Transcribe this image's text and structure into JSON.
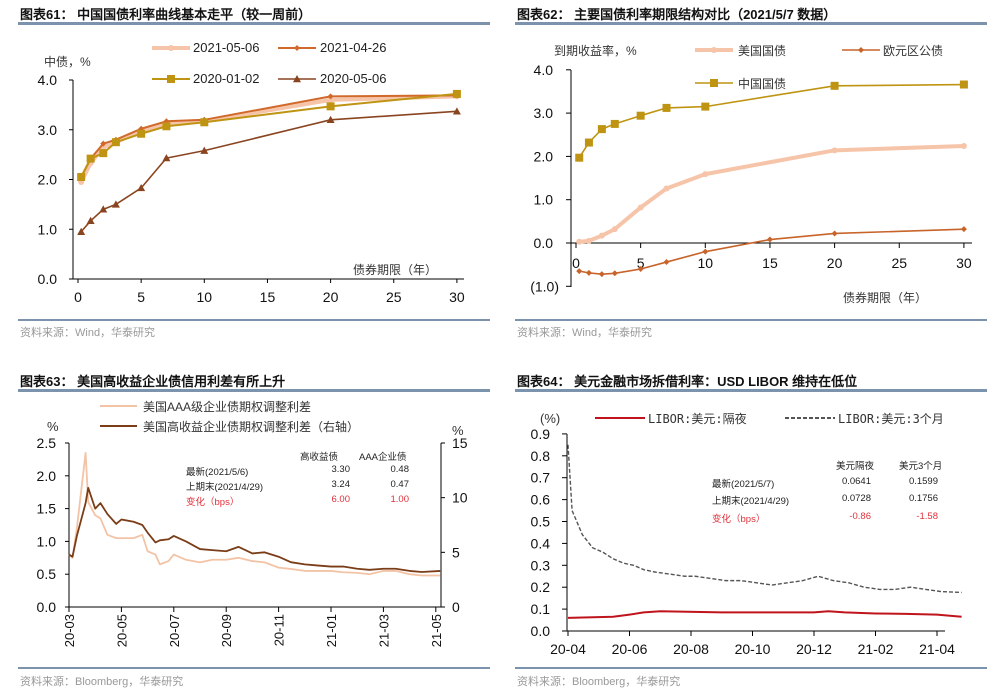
{
  "panels": [
    {
      "title": "图表61：  中国国债利率曲线基本走平（较一周前）",
      "source": "资料来源：Wind，华泰研究"
    },
    {
      "title": "图表62：  主要国债利率期限结构对比（2021/5/7 数据）",
      "source": "资料来源：Wind，华泰研究"
    },
    {
      "title": "图表63：  美国高收益企业债信用利差有所上升",
      "source": "资料来源：Bloomberg，华泰研究"
    },
    {
      "title": "图表64：  美元金融市场拆借利率：USD LIBOR 维持在低位",
      "source": "资料来源：Bloomberg，华泰研究"
    }
  ],
  "table63": {
    "headers": [
      "高收益债",
      "AAA企业债"
    ],
    "rows": [
      {
        "label": "最新(2021/5/6)",
        "v1": "3.30",
        "v2": "0.48"
      },
      {
        "label": "上期末(2021/4/29)",
        "v1": "3.24",
        "v2": "0.47"
      },
      {
        "label": "变化（bps）",
        "v1": "6.00",
        "v2": "1.00"
      }
    ]
  },
  "table64": {
    "headers": [
      "美元隔夜",
      "美元3个月"
    ],
    "rows": [
      {
        "label": "最新(2021/5/7)",
        "v1": "0.0641",
        "v2": "0.1599"
      },
      {
        "label": "上期末(2021/4/29)",
        "v1": "0.0728",
        "v2": "0.1756"
      },
      {
        "label": "变化（bps）",
        "v1": "-0.86",
        "v2": "-1.58"
      }
    ]
  },
  "chart_data": [
    {
      "type": "line",
      "title": "中国国债利率曲线基本走平（较一周前）",
      "xlabel": "债券期限（年）",
      "ylabel": "中债，%",
      "xlim": [
        0,
        30
      ],
      "ylim": [
        0,
        4
      ],
      "xticks": [
        "0",
        "5",
        "10",
        "15",
        "20",
        "25",
        "30"
      ],
      "yticks": [
        "0.0",
        "1.0",
        "2.0",
        "3.0",
        "4.0"
      ],
      "legend": "top",
      "x": [
        0.25,
        1,
        2,
        3,
        5,
        7,
        10,
        20,
        30
      ],
      "series": [
        {
          "name": "2021-05-06",
          "color": "#f6c4a8",
          "values": [
            1.95,
            2.33,
            2.65,
            2.75,
            2.97,
            3.12,
            3.17,
            3.6,
            3.67
          ]
        },
        {
          "name": "2021-04-26",
          "color": "#d0692a",
          "values": [
            2.05,
            2.42,
            2.72,
            2.8,
            3.02,
            3.17,
            3.2,
            3.67,
            3.69
          ]
        },
        {
          "name": "2020-01-02",
          "color": "#bf9412",
          "values": [
            2.05,
            2.42,
            2.53,
            2.75,
            2.92,
            3.07,
            3.15,
            3.47,
            3.72
          ]
        },
        {
          "name": "2020-05-06",
          "color": "#8a4520",
          "values": [
            0.95,
            1.17,
            1.4,
            1.5,
            1.83,
            2.43,
            2.58,
            3.2,
            3.37
          ]
        }
      ]
    },
    {
      "type": "line",
      "title": "主要国债利率期限结构对比（2021/5/7 数据）",
      "xlabel": "债券期限（年）",
      "ylabel": "到期收益率，%",
      "xlim": [
        0,
        30
      ],
      "ylim": [
        -1,
        4
      ],
      "xticks": [
        "0",
        "5",
        "10",
        "15",
        "20",
        "25",
        "30"
      ],
      "yticks": [
        "(1.0)",
        "0.0",
        "1.0",
        "2.0",
        "3.0",
        "4.0"
      ],
      "legend": "top",
      "series": [
        {
          "name": "美国国债",
          "color": "#f6c4a8",
          "x": [
            0.25,
            1,
            2,
            3,
            5,
            7,
            10,
            20,
            30
          ],
          "values": [
            0.03,
            0.05,
            0.17,
            0.32,
            0.82,
            1.26,
            1.59,
            2.14,
            2.24
          ]
        },
        {
          "name": "欧元区公债",
          "color": "#c8642a",
          "x": [
            0.25,
            1,
            2,
            3,
            5,
            7,
            10,
            15,
            20,
            30
          ],
          "values": [
            -0.65,
            -0.69,
            -0.72,
            -0.7,
            -0.6,
            -0.44,
            -0.2,
            0.08,
            0.22,
            0.32
          ]
        },
        {
          "name": "中国国债",
          "color": "#bf9412",
          "x": [
            0.25,
            1,
            2,
            3,
            5,
            7,
            10,
            20,
            30
          ],
          "values": [
            1.97,
            2.32,
            2.63,
            2.75,
            2.94,
            3.12,
            3.15,
            3.63,
            3.66
          ]
        }
      ]
    },
    {
      "type": "line",
      "title": "美国高收益企业债信用利差有所上升",
      "ylabel_left": "%",
      "ylabel_right": "%",
      "ylim": [
        0,
        2.5
      ],
      "ylim_right": [
        0,
        15
      ],
      "xticks": [
        "20-03",
        "20-05",
        "20-07",
        "20-09",
        "20-11",
        "21-01",
        "21-03",
        "21-05"
      ],
      "yticks": [
        "0.0",
        "0.5",
        "1.0",
        "1.5",
        "2.0",
        "2.5"
      ],
      "yticks_right": [
        "0",
        "5",
        "10",
        "15"
      ],
      "legend": "top-left",
      "series": [
        {
          "name": "美国AAA级企业债期权调整利差",
          "axis": "left",
          "color": "#f3c3a6",
          "x": [
            "2020-03-01",
            "2020-03-05",
            "2020-03-10",
            "2020-03-20",
            "2020-03-23",
            "2020-03-31",
            "2020-04-07",
            "2020-04-15",
            "2020-04-25",
            "2020-05-01",
            "2020-05-15",
            "2020-05-25",
            "2020-06-01",
            "2020-06-10",
            "2020-06-15",
            "2020-06-25",
            "2020-07-01",
            "2020-07-15",
            "2020-08-01",
            "2020-08-15",
            "2020-09-01",
            "2020-09-15",
            "2020-10-01",
            "2020-10-15",
            "2020-11-01",
            "2020-11-15",
            "2020-12-01",
            "2020-12-15",
            "2021-01-01",
            "2021-01-15",
            "2021-02-01",
            "2021-02-15",
            "2021-03-01",
            "2021-03-15",
            "2021-04-01",
            "2021-04-15",
            "2021-05-06"
          ],
          "values": [
            0.8,
            0.75,
            1.2,
            2.35,
            1.6,
            1.4,
            1.35,
            1.1,
            1.05,
            1.05,
            1.05,
            1.1,
            0.85,
            0.8,
            0.65,
            0.7,
            0.8,
            0.72,
            0.68,
            0.72,
            0.72,
            0.75,
            0.7,
            0.68,
            0.6,
            0.58,
            0.55,
            0.55,
            0.55,
            0.53,
            0.52,
            0.5,
            0.55,
            0.55,
            0.5,
            0.48,
            0.48
          ]
        },
        {
          "name": "美国高收益企业债期权调整利差（右轴）",
          "axis": "right",
          "color": "#7a3d17",
          "x": [
            "2020-03-01",
            "2020-03-05",
            "2020-03-10",
            "2020-03-20",
            "2020-03-23",
            "2020-03-31",
            "2020-04-07",
            "2020-04-15",
            "2020-04-25",
            "2020-05-01",
            "2020-05-15",
            "2020-05-25",
            "2020-06-01",
            "2020-06-10",
            "2020-06-15",
            "2020-06-25",
            "2020-07-01",
            "2020-07-15",
            "2020-08-01",
            "2020-08-15",
            "2020-09-01",
            "2020-09-15",
            "2020-10-01",
            "2020-10-15",
            "2020-11-01",
            "2020-11-15",
            "2020-12-01",
            "2020-12-15",
            "2021-01-01",
            "2021-01-15",
            "2021-02-01",
            "2021-02-15",
            "2021-03-01",
            "2021-03-15",
            "2021-04-01",
            "2021-04-15",
            "2021-05-06"
          ],
          "values": [
            4.8,
            4.6,
            6.5,
            9.5,
            10.9,
            9.0,
            9.5,
            8.5,
            7.6,
            8.0,
            7.8,
            7.5,
            6.8,
            5.9,
            6.1,
            6.2,
            6.5,
            6.0,
            5.3,
            5.2,
            5.1,
            5.5,
            4.9,
            5.0,
            4.6,
            4.1,
            3.9,
            3.8,
            3.7,
            3.7,
            3.5,
            3.4,
            3.5,
            3.5,
            3.3,
            3.2,
            3.3
          ]
        }
      ]
    },
    {
      "type": "line",
      "title": "美元金融市场拆借利率：USD LIBOR 维持在低位",
      "ylabel": "(%)",
      "ylim": [
        0,
        0.9
      ],
      "xticks": [
        "20-04",
        "20-06",
        "20-08",
        "20-10",
        "20-12",
        "21-02",
        "21-04"
      ],
      "yticks": [
        "0.0",
        "0.1",
        "0.2",
        "0.3",
        "0.4",
        "0.5",
        "0.6",
        "0.7",
        "0.8",
        "0.9"
      ],
      "legend": "top",
      "series": [
        {
          "name": "LIBOR:美元:隔夜",
          "color": "#c0141c",
          "dash": false,
          "x": [
            "2020-04-01",
            "2020-05-15",
            "2020-06-01",
            "2020-06-15",
            "2020-07-01",
            "2020-09-01",
            "2020-12-01",
            "2020-12-15",
            "2021-01-01",
            "2021-02-01",
            "2021-03-01",
            "2021-04-01",
            "2021-04-25"
          ],
          "values": [
            0.06,
            0.065,
            0.075,
            0.085,
            0.09,
            0.085,
            0.085,
            0.09,
            0.085,
            0.08,
            0.078,
            0.075,
            0.065
          ]
        },
        {
          "name": "LIBOR:美元:3个月",
          "color": "#555555",
          "dash": true,
          "x": [
            "2020-04-01",
            "2020-04-05",
            "2020-04-15",
            "2020-04-25",
            "2020-05-05",
            "2020-05-15",
            "2020-05-25",
            "2020-06-05",
            "2020-06-15",
            "2020-06-25",
            "2020-07-10",
            "2020-07-25",
            "2020-08-05",
            "2020-08-20",
            "2020-09-05",
            "2020-09-20",
            "2020-10-05",
            "2020-10-20",
            "2020-11-05",
            "2020-11-20",
            "2020-12-05",
            "2020-12-20",
            "2021-01-05",
            "2021-01-20",
            "2021-02-05",
            "2021-02-20",
            "2021-03-05",
            "2021-03-20",
            "2021-04-05",
            "2021-04-25"
          ],
          "values": [
            0.85,
            0.55,
            0.44,
            0.38,
            0.36,
            0.33,
            0.31,
            0.3,
            0.28,
            0.27,
            0.26,
            0.25,
            0.25,
            0.24,
            0.23,
            0.23,
            0.22,
            0.21,
            0.22,
            0.23,
            0.25,
            0.23,
            0.22,
            0.2,
            0.19,
            0.19,
            0.2,
            0.19,
            0.18,
            0.176
          ]
        }
      ]
    }
  ]
}
